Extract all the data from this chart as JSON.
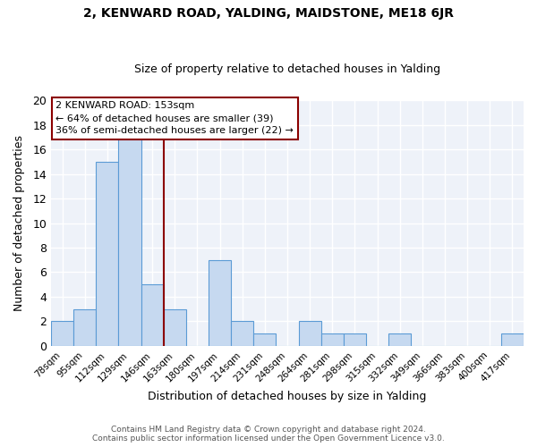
{
  "title1": "2, KENWARD ROAD, YALDING, MAIDSTONE, ME18 6JR",
  "title2": "Size of property relative to detached houses in Yalding",
  "xlabel": "Distribution of detached houses by size in Yalding",
  "ylabel": "Number of detached properties",
  "bar_labels": [
    "78sqm",
    "95sqm",
    "112sqm",
    "129sqm",
    "146sqm",
    "163sqm",
    "180sqm",
    "197sqm",
    "214sqm",
    "231sqm",
    "248sqm",
    "264sqm",
    "281sqm",
    "298sqm",
    "315sqm",
    "332sqm",
    "349sqm",
    "366sqm",
    "383sqm",
    "400sqm",
    "417sqm"
  ],
  "bar_values": [
    2,
    3,
    15,
    17,
    5,
    3,
    0,
    7,
    2,
    1,
    0,
    2,
    1,
    1,
    0,
    1,
    0,
    0,
    0,
    0,
    1
  ],
  "bar_color": "#c6d9f0",
  "bar_edge_color": "#5b9bd5",
  "ref_line_color": "#8b0000",
  "annotation_title": "2 KENWARD ROAD: 153sqm",
  "annotation_line1": "← 64% of detached houses are smaller (39)",
  "annotation_line2": "36% of semi-detached houses are larger (22) →",
  "annotation_box_color": "#ffffff",
  "annotation_box_edge_color": "#8b0000",
  "ylim": [
    0,
    20
  ],
  "yticks": [
    0,
    2,
    4,
    6,
    8,
    10,
    12,
    14,
    16,
    18,
    20
  ],
  "footer1": "Contains HM Land Registry data © Crown copyright and database right 2024.",
  "footer2": "Contains public sector information licensed under the Open Government Licence v3.0.",
  "background_color": "#eef2f9",
  "grid_color": "#d8dce8",
  "fig_bg_color": "#ffffff"
}
